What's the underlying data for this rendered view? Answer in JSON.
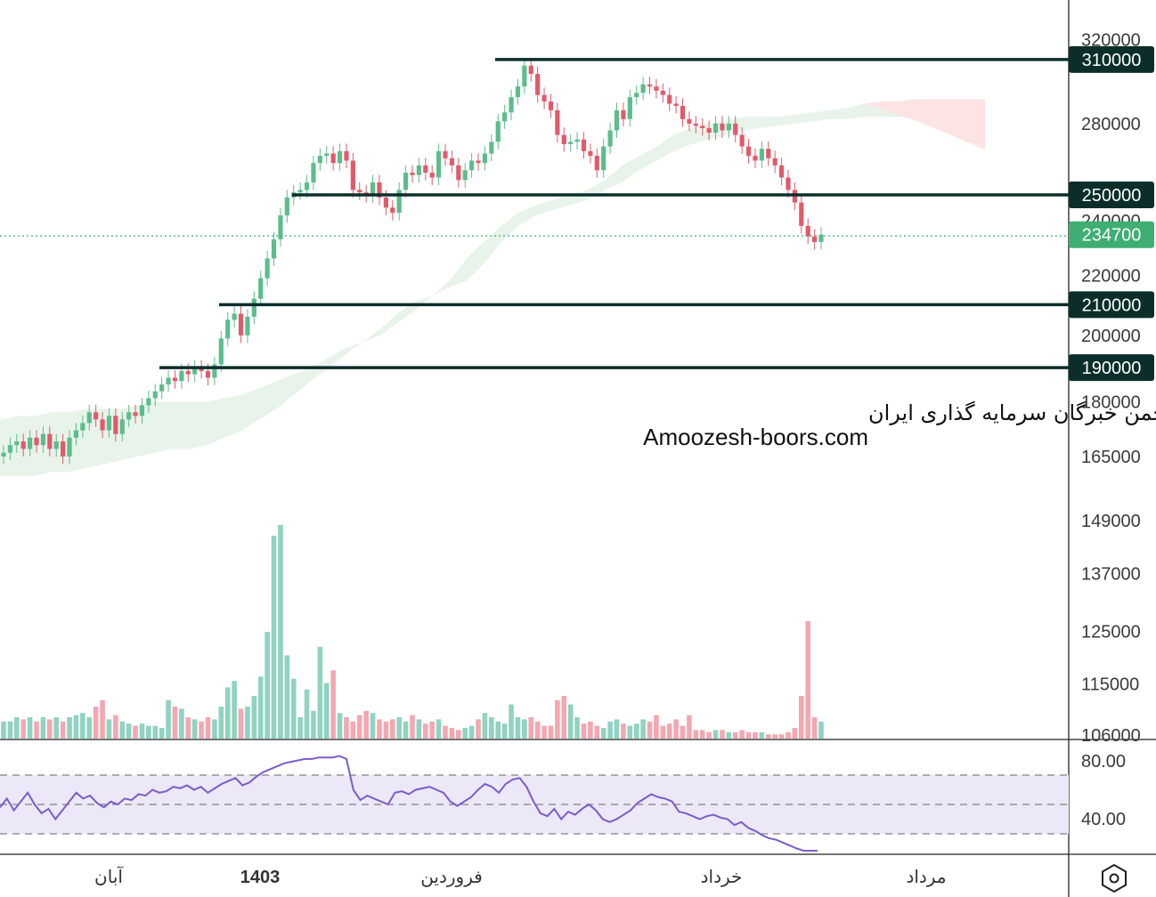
{
  "chart_data": {
    "type": "candlestick",
    "price_axis": {
      "tick_labels": [
        "320000",
        "280000",
        "240000",
        "220000",
        "200000",
        "180000",
        "165000",
        "149000",
        "137000",
        "125000",
        "115000",
        "106000"
      ],
      "scale": "log",
      "range": [
        106000,
        322000
      ]
    },
    "horizontal_levels": [
      {
        "value": 310000,
        "label": "310000"
      },
      {
        "value": 250000,
        "label": "250000"
      },
      {
        "value": 210000,
        "label": "210000"
      },
      {
        "value": 190000,
        "label": "190000"
      }
    ],
    "last_price": {
      "value": 234700,
      "label": "234700"
    },
    "time_axis": [
      "آبان",
      "1403",
      "فروردین",
      "خرداد",
      "مرداد"
    ],
    "watermark": {
      "line1": "انجمن خبرگان سرمایه گذاری ایران",
      "line2": "Amoozesh-boors.com"
    },
    "candles_close": [
      166,
      168,
      169,
      167,
      170,
      168,
      171,
      167,
      169,
      165,
      170,
      172,
      174,
      177,
      175,
      172,
      176,
      171,
      175,
      177,
      176,
      179,
      181,
      183,
      185,
      187,
      186,
      189,
      188,
      190,
      189,
      187,
      191,
      199,
      205,
      207,
      200,
      206,
      212,
      219,
      226,
      233,
      242,
      249,
      251,
      252,
      255,
      263,
      266,
      267,
      263,
      268,
      264,
      252,
      251,
      250,
      255,
      249,
      245,
      243,
      252,
      259,
      258,
      262,
      259,
      257,
      268,
      265,
      262,
      256,
      260,
      264,
      263,
      267,
      272,
      281,
      285,
      292,
      297,
      307,
      303,
      293,
      290,
      286,
      275,
      271,
      272,
      273,
      268,
      266,
      260,
      270,
      277,
      286,
      282,
      292,
      294,
      298,
      297,
      295,
      293,
      289,
      288,
      282,
      280,
      279,
      278,
      276,
      280,
      277,
      280,
      275,
      270,
      266,
      264,
      269,
      265,
      262,
      257,
      252,
      247,
      238,
      234,
      232,
      234.7
    ],
    "candles_open": [
      165,
      166,
      168,
      169,
      167,
      170,
      168,
      171,
      167,
      169,
      165,
      170,
      172,
      174,
      177,
      175,
      172,
      176,
      171,
      175,
      177,
      176,
      179,
      181,
      183,
      185,
      187,
      186,
      189,
      188,
      190,
      189,
      187,
      191,
      199,
      205,
      207,
      200,
      206,
      212,
      219,
      226,
      233,
      242,
      249,
      251,
      252,
      255,
      263,
      266,
      267,
      263,
      268,
      264,
      252,
      251,
      250,
      255,
      249,
      245,
      243,
      252,
      259,
      258,
      262,
      259,
      257,
      268,
      265,
      262,
      256,
      260,
      264,
      263,
      267,
      272,
      281,
      285,
      292,
      297,
      307,
      303,
      293,
      290,
      286,
      275,
      271,
      272,
      273,
      268,
      266,
      260,
      270,
      277,
      286,
      282,
      292,
      294,
      298,
      297,
      295,
      293,
      289,
      288,
      282,
      280,
      279,
      278,
      276,
      280,
      277,
      280,
      275,
      270,
      266,
      264,
      269,
      265,
      262,
      257,
      252,
      247,
      238,
      234,
      232
    ],
    "volume_relative": [
      0.08,
      0.08,
      0.1,
      0.09,
      0.1,
      0.08,
      0.1,
      0.09,
      0.1,
      0.08,
      0.1,
      0.11,
      0.12,
      0.1,
      0.15,
      0.18,
      0.09,
      0.11,
      0.08,
      0.07,
      0.06,
      0.07,
      0.06,
      0.06,
      0.05,
      0.18,
      0.15,
      0.14,
      0.1,
      0.09,
      0.08,
      0.1,
      0.09,
      0.15,
      0.24,
      0.27,
      0.14,
      0.15,
      0.2,
      0.29,
      0.5,
      0.95,
      1.0,
      0.39,
      0.28,
      0.1,
      0.23,
      0.13,
      0.43,
      0.26,
      0.32,
      0.12,
      0.1,
      0.08,
      0.11,
      0.13,
      0.12,
      0.09,
      0.08,
      0.09,
      0.1,
      0.08,
      0.11,
      0.09,
      0.07,
      0.08,
      0.09,
      0.06,
      0.05,
      0.04,
      0.05,
      0.06,
      0.09,
      0.12,
      0.1,
      0.08,
      0.07,
      0.16,
      0.1,
      0.09,
      0.1,
      0.08,
      0.06,
      0.06,
      0.18,
      0.2,
      0.16,
      0.1,
      0.07,
      0.08,
      0.06,
      0.05,
      0.08,
      0.09,
      0.07,
      0.06,
      0.07,
      0.09,
      0.08,
      0.11,
      0.06,
      0.07,
      0.09,
      0.06,
      0.11,
      0.04,
      0.04,
      0.03,
      0.04,
      0.04,
      0.03,
      0.03,
      0.04,
      0.03,
      0.03,
      0.03,
      0.02,
      0.02,
      0.02,
      0.03,
      0.05,
      0.2,
      0.55,
      0.1,
      0.08
    ],
    "ichimoku_cloud_upper": [
      175,
      176,
      176,
      177,
      177,
      178,
      178,
      178,
      179,
      180,
      180,
      180,
      180,
      181,
      182,
      184,
      186,
      188,
      190,
      193,
      196,
      198,
      200,
      204,
      208,
      213,
      218,
      226,
      232,
      238,
      243,
      246,
      248,
      250,
      252,
      256,
      262,
      266,
      270,
      275,
      278,
      280,
      281,
      283,
      283,
      283,
      284,
      285,
      286,
      287,
      289,
      290,
      290,
      291,
      291,
      291,
      291,
      291
    ],
    "ichimoku_cloud_lower": [
      160,
      160,
      160,
      161,
      161,
      162,
      163,
      164,
      165,
      166,
      167,
      167,
      168,
      170,
      172,
      175,
      178,
      182,
      186,
      190,
      194,
      198,
      202,
      207,
      211,
      213,
      216,
      218,
      224,
      232,
      238,
      242,
      244,
      246,
      248,
      252,
      255,
      260,
      264,
      268,
      271,
      273,
      275,
      277,
      278,
      279,
      280,
      281,
      282,
      282,
      283,
      283,
      283,
      283,
      284,
      284,
      284,
      284
    ],
    "rsi": {
      "levels": [
        "80.00",
        "40.00"
      ],
      "values": [
        58,
        64,
        56,
        62,
        68,
        60,
        54,
        57,
        50,
        56,
        62,
        68,
        64,
        66,
        61,
        58,
        62,
        60,
        64,
        63,
        67,
        66,
        70,
        68,
        69,
        72,
        71,
        73,
        70,
        72,
        68,
        71,
        74,
        76,
        78,
        73,
        75,
        79,
        82,
        84,
        86,
        88,
        89,
        90,
        91,
        91,
        92,
        92,
        92,
        93,
        91,
        70,
        63,
        66,
        64,
        62,
        60,
        68,
        69,
        67,
        70,
        71,
        72,
        70,
        68,
        62,
        59,
        62,
        65,
        70,
        74,
        72,
        68,
        74,
        77,
        78,
        72,
        62,
        54,
        52,
        57,
        50,
        55,
        53,
        57,
        60,
        56,
        50,
        48,
        50,
        53,
        56,
        61,
        64,
        67,
        65,
        64,
        62,
        55,
        54,
        52,
        50,
        52,
        53,
        51,
        50,
        46,
        48,
        44,
        42,
        39,
        37,
        36,
        34,
        32,
        30,
        28,
        27,
        28
      ]
    },
    "colors": {
      "up": "#5cbd8c",
      "down": "#e25a6a",
      "cloud_green": "#e8f4ea",
      "cloud_red": "#fde3e3",
      "rsi_line": "#7a5ccb",
      "rsi_band": "#ece8f8",
      "level_line": "#0b2e2a",
      "last_badge": "#3fae73",
      "vol_up": "#8fd3c0",
      "vol_down": "#f4a7b0"
    }
  },
  "logo_icon": "hexagon-logo-icon"
}
